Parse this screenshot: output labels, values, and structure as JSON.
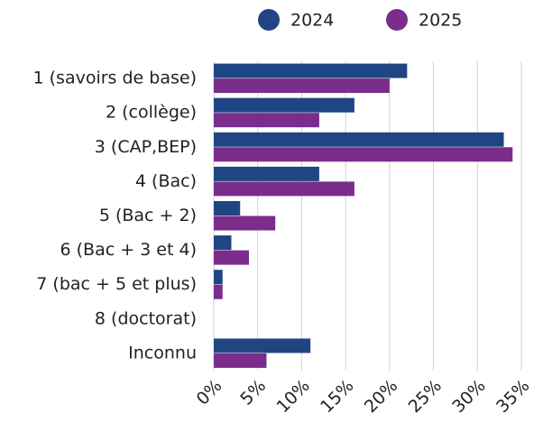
{
  "chart_data": {
    "type": "hbar",
    "categories": [
      "1 (savoirs de base)",
      "2 (collège)",
      "3 (CAP,BEP)",
      "4 (Bac)",
      "5 (Bac + 2)",
      "6 (Bac + 3 et 4)",
      "7 (bac + 5 et plus)",
      "8 (doctorat)",
      "Inconnu"
    ],
    "series": [
      {
        "name": "2024",
        "color": "#1f4682",
        "values": [
          22,
          16,
          33,
          12,
          3,
          2,
          1,
          0,
          11
        ]
      },
      {
        "name": "2025",
        "color": "#7b2d8b",
        "values": [
          20,
          12,
          34,
          16,
          7,
          4,
          1,
          0,
          6
        ]
      }
    ],
    "xlim": [
      0,
      35
    ],
    "xticks": [
      {
        "value": 0,
        "label": "0%"
      },
      {
        "value": 5,
        "label": "5%"
      },
      {
        "value": 10,
        "label": "10%"
      },
      {
        "value": 15,
        "label": "15%"
      },
      {
        "value": 20,
        "label": "20%"
      },
      {
        "value": 25,
        "label": "25%"
      },
      {
        "value": 30,
        "label": "30%"
      },
      {
        "value": 35,
        "label": "35%"
      }
    ],
    "grid": true,
    "legend": "top"
  }
}
